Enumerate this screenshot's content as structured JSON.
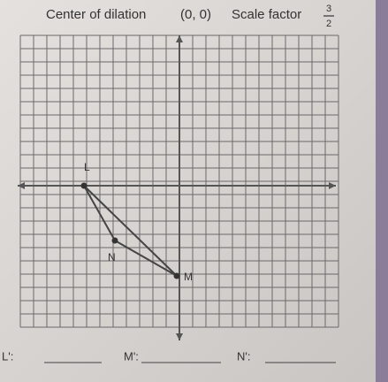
{
  "header": {
    "center_label": "Center of dilation",
    "center_value": "(0, 0)",
    "scale_label": "Scale factor",
    "scale_numerator": "3",
    "scale_denominator": "2"
  },
  "points": {
    "L": "L",
    "N": "N",
    "M": "M"
  },
  "answers": [
    "L':",
    "M':",
    "N':"
  ]
}
